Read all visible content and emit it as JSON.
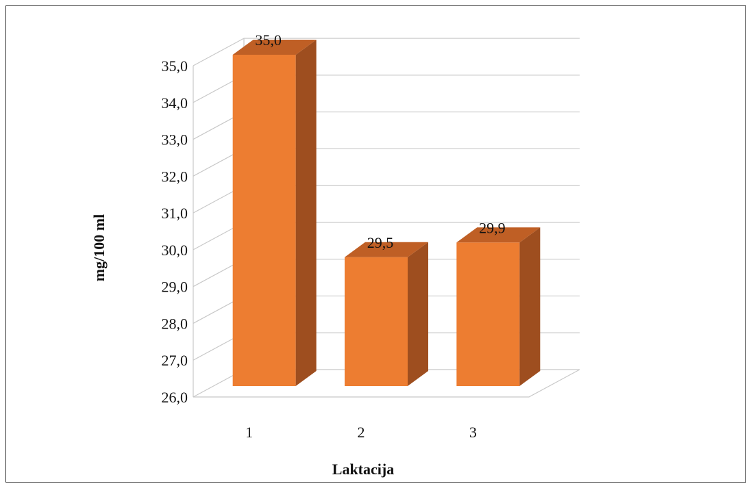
{
  "chart_data": {
    "type": "bar",
    "style": "3d-column",
    "categories": [
      "1",
      "2",
      "3"
    ],
    "values": [
      35.0,
      29.5,
      29.9
    ],
    "data_labels": [
      "35,0",
      "29,5",
      "29,9"
    ],
    "title": "",
    "xlabel": "Laktacija",
    "ylabel": "mg/100 ml",
    "ylim": [
      26.0,
      35.0
    ],
    "yticks": [
      "26,0",
      "27,0",
      "28,0",
      "29,0",
      "30,0",
      "31,0",
      "32,0",
      "33,0",
      "34,0",
      "35,0"
    ],
    "grid": true,
    "legend": "none",
    "colors": {
      "bar_front": "#ED7D31",
      "bar_side": "#9E4E1F",
      "bar_top": "#BF5F25",
      "gridline": "#c8c8c8",
      "text": "#111111"
    }
  }
}
